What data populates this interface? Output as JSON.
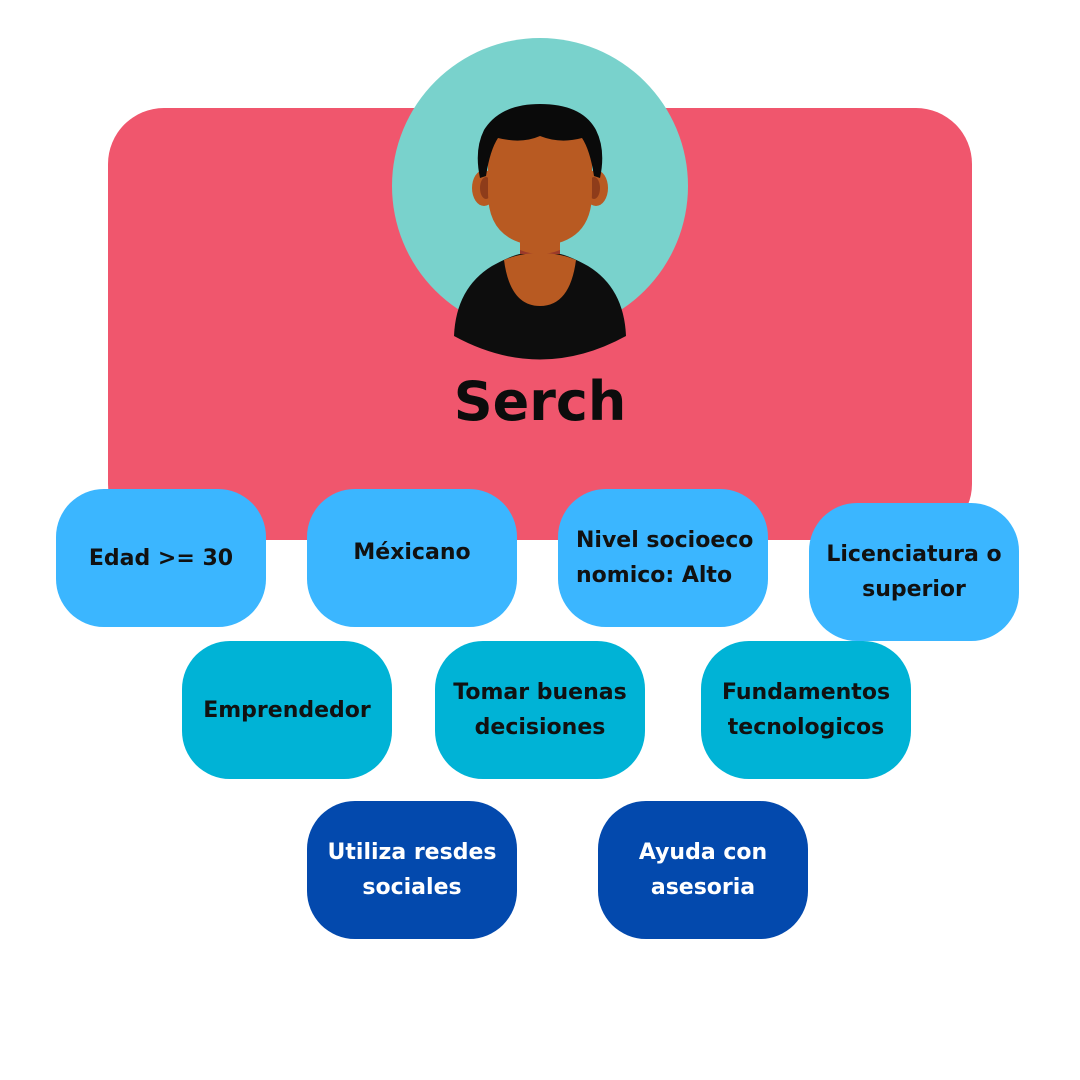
{
  "persona": {
    "name": "Serch"
  },
  "avatar": {
    "icon": "person-avatar-icon",
    "circle_color": "#79d2cc",
    "skin_color": "#b85a22",
    "hair_color": "#0a0a0a"
  },
  "colors": {
    "card": "#f0566d",
    "light_blue": "#3bb6ff",
    "teal": "#00b3d6",
    "navy": "#0349ad"
  },
  "traits": {
    "row1": [
      {
        "label": "Edad >= 30"
      },
      {
        "label": "Méxicano"
      },
      {
        "label": "Nivel socioeconomico: Alto"
      },
      {
        "label": "Licenciatura o superior"
      }
    ],
    "row2": [
      {
        "label": "Emprendedor"
      },
      {
        "label": "Tomar buenas decisiones"
      },
      {
        "label": "Fundamentos tecnologicos"
      }
    ],
    "row3": [
      {
        "label": "Utiliza resdes sociales"
      },
      {
        "label": "Ayuda con asesoria"
      }
    ]
  }
}
